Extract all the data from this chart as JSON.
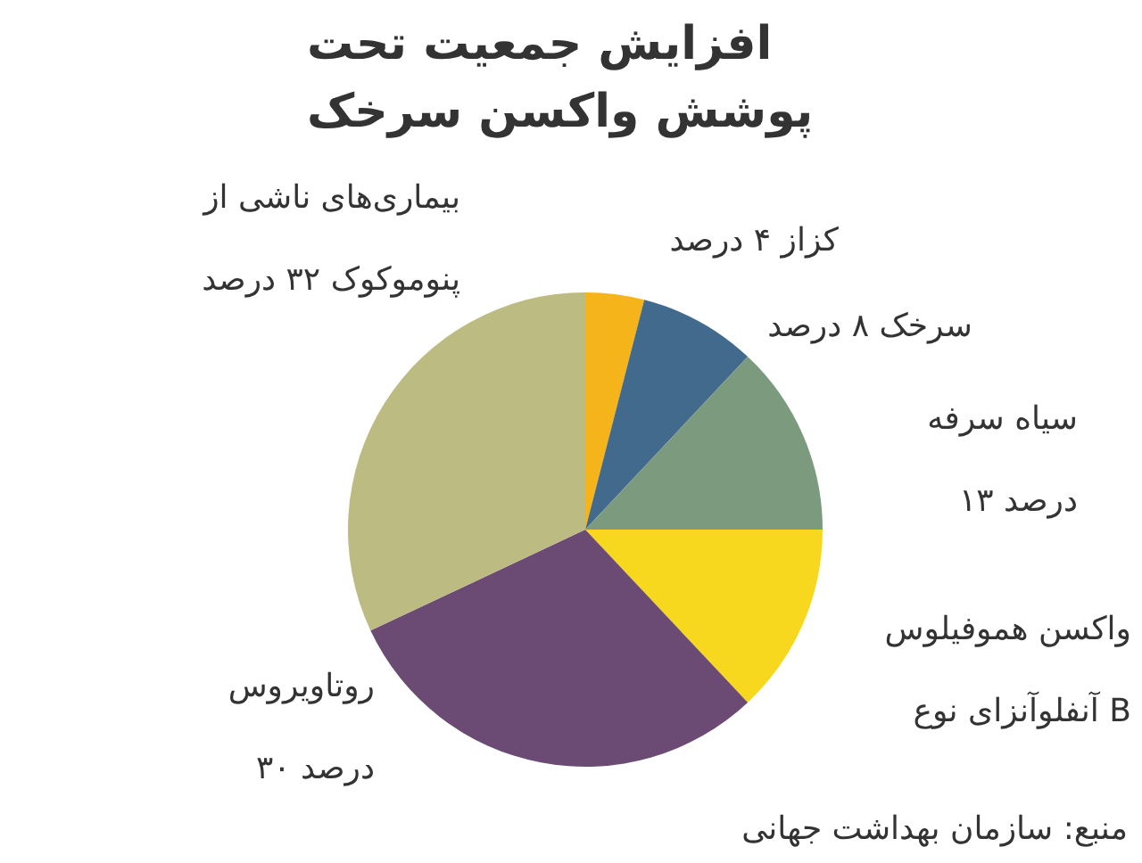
{
  "chart_data": {
    "type": "pie",
    "title": "افزایش جمعیت تحت پوشش واکسن سرخک",
    "categories": [
      "کزاز ۴ درصد",
      "سرخک ۸ درصد",
      "سیاه سرفه ۱۳ درصد",
      "واکسن هموفیلوس آنفلوآنزای نوع B",
      "روتاویروس ۳۰ درصد",
      "بیماری‌های ناشی از پنوموکوک ۳۲ درصد"
    ],
    "values": [
      4,
      8,
      13,
      13,
      30,
      32
    ],
    "colors": [
      "#f4b41a",
      "#426a8c",
      "#7b9a7e",
      "#f8d81e",
      "#6b4a74",
      "#bcbb82"
    ],
    "annotations": [
      "منبع: سازمان بهداشت جهانی"
    ]
  }
}
